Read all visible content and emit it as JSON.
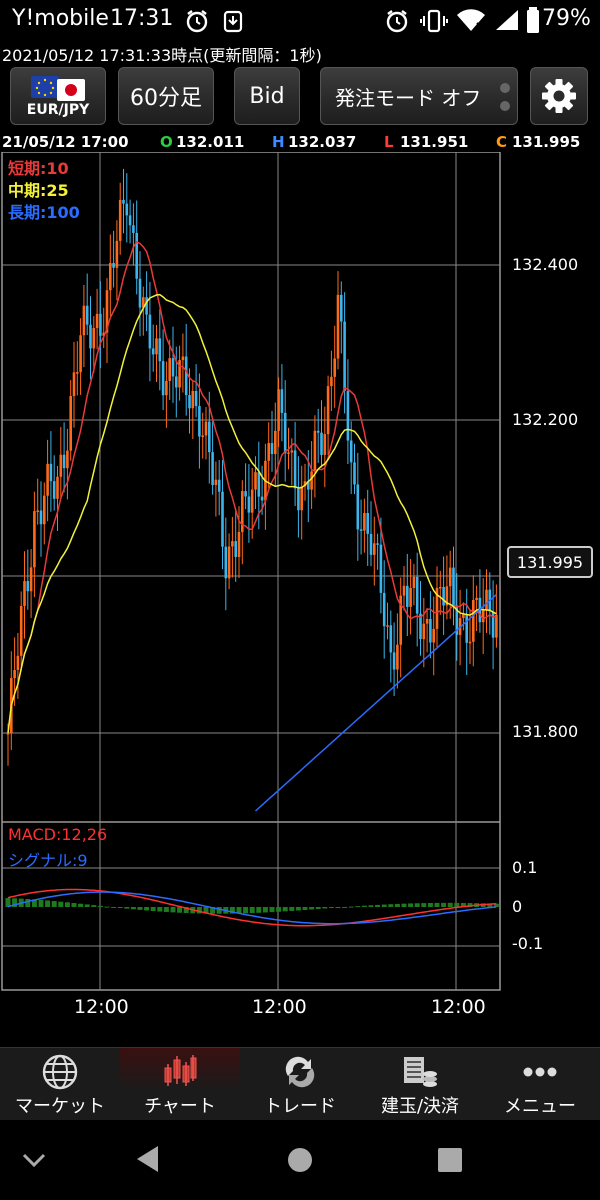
{
  "status_bar": {
    "carrier": "Y!mobile",
    "time": "17:31",
    "battery": "79%"
  },
  "header": {
    "timestamp": "2021/05/12  17:31:33時点(更新間隔：1秒)"
  },
  "toolbar": {
    "pair": "EUR/JPY",
    "timeframe": "60分足",
    "price_type": "Bid",
    "order_mode": "発注モード オフ"
  },
  "ohlc": {
    "date": "21/05/12 17:00",
    "open_label": "O",
    "open": "132.011",
    "high_label": "H",
    "high": "132.037",
    "low_label": "L",
    "low": "131.951",
    "close_label": "C",
    "close": "131.995"
  },
  "legend": {
    "short": "短期:10",
    "mid": "中期:25",
    "long": "長期:100",
    "macd": "MACD:12,26",
    "signal": "シグナル:9"
  },
  "colors": {
    "up_candle": "#ff6a1a",
    "down_candle": "#3cb4ec",
    "ma_short": "#e83a3a",
    "ma_mid": "#f2f23a",
    "ma_long": "#2a6cff",
    "macd": "#ff3030",
    "signal": "#2a6cff",
    "histogram": "#1e7a1e",
    "open": "#2ecc40",
    "high": "#3d8bff",
    "low": "#ff3b3b",
    "close": "#ff9a1a"
  },
  "chart_data": {
    "type": "candlestick",
    "price_axis_ticks": [
      "132.400",
      "132.200",
      "131.800"
    ],
    "current_price": "131.995",
    "macd_axis_ticks": [
      "0.1",
      "0",
      "-0.1"
    ],
    "time_ticks": [
      "12:00",
      "12:00",
      "12:00"
    ],
    "ylim": [
      131.7,
      132.55
    ]
  },
  "bottom_nav": [
    {
      "label": "マーケット",
      "icon": "globe-icon"
    },
    {
      "label": "チャート",
      "icon": "candlestick-icon"
    },
    {
      "label": "トレード",
      "icon": "trade-icon"
    },
    {
      "label": "建玉/決済",
      "icon": "position-icon"
    },
    {
      "label": "メニュー",
      "icon": "more-icon"
    }
  ]
}
